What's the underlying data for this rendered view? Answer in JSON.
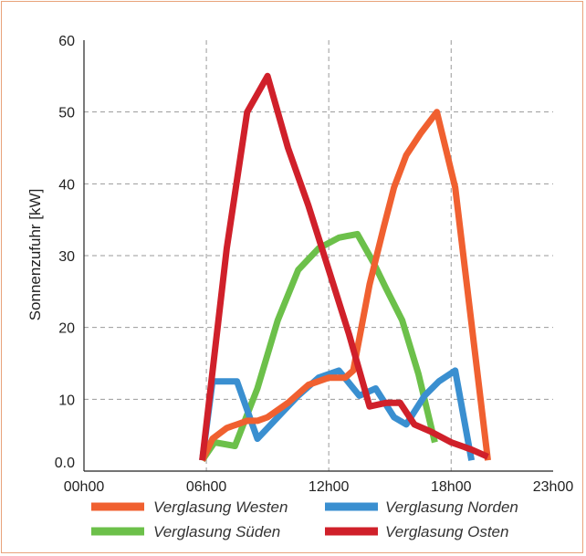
{
  "chart_data": {
    "type": "line",
    "title": "",
    "xlabel": "",
    "ylabel": "Sonnenzufuhr [kW]",
    "xlim": [
      0,
      23
    ],
    "ylim": [
      0,
      60
    ],
    "x_ticks": [
      {
        "value": 0,
        "label": "00h00"
      },
      {
        "value": 6,
        "label": "06h00"
      },
      {
        "value": 12,
        "label": "12h00"
      },
      {
        "value": 18,
        "label": "18h00"
      },
      {
        "value": 23,
        "label": "23h00"
      }
    ],
    "y_ticks": [
      {
        "value": 0,
        "label": "0.0"
      },
      {
        "value": 10,
        "label": "10"
      },
      {
        "value": 20,
        "label": "20"
      },
      {
        "value": 30,
        "label": "30"
      },
      {
        "value": 40,
        "label": "40"
      },
      {
        "value": 50,
        "label": "50"
      },
      {
        "value": 60,
        "label": "60"
      }
    ],
    "grid": {
      "horizontal": true,
      "vertical": true,
      "style": "dashed"
    },
    "legend_position": "bottom",
    "series": [
      {
        "name": "Verglasung Westen",
        "color": "#f06030",
        "x": [
          5.8,
          6.3,
          7.0,
          7.5,
          8.0,
          8.5,
          9.0,
          10.0,
          11.0,
          12.0,
          12.8,
          13.2,
          14.0,
          14.7,
          15.2,
          15.8,
          16.5,
          17.3,
          18.2,
          19.8
        ],
        "y": [
          1.5,
          4.5,
          6.0,
          6.5,
          7.0,
          7.0,
          7.5,
          9.5,
          12.0,
          13.0,
          13.0,
          14.0,
          26.0,
          34.0,
          39.5,
          44.0,
          47.0,
          50.0,
          39.5,
          1.5
        ]
      },
      {
        "name": "Verglasung Norden",
        "color": "#3a8fd0",
        "x": [
          5.8,
          6.3,
          7.0,
          7.5,
          8.5,
          9.5,
          10.5,
          11.5,
          12.5,
          13.5,
          14.3,
          15.2,
          15.8,
          16.7,
          17.4,
          18.2,
          19.0
        ],
        "y": [
          1.5,
          12.5,
          12.5,
          12.5,
          4.5,
          7.5,
          10.5,
          13.0,
          14.0,
          10.5,
          11.5,
          7.5,
          6.5,
          10.5,
          12.5,
          14.0,
          1.5
        ]
      },
      {
        "name": "Verglasung Süden",
        "color": "#6cc04a",
        "x": [
          5.8,
          6.4,
          7.4,
          8.5,
          9.5,
          10.5,
          11.5,
          12.5,
          13.4,
          14.2,
          14.8,
          15.6,
          16.4,
          17.2
        ],
        "y": [
          1.5,
          4.0,
          3.5,
          11.5,
          21.0,
          28.0,
          31.0,
          32.5,
          33.0,
          29.0,
          25.5,
          21.0,
          13.5,
          4.0
        ]
      },
      {
        "name": "Verglasung Osten",
        "color": "#d0202a",
        "x": [
          5.8,
          7.0,
          8.0,
          9.0,
          10.0,
          11.0,
          12.0,
          13.0,
          14.0,
          14.8,
          15.5,
          16.2,
          17.0,
          18.0,
          19.0,
          19.8
        ],
        "y": [
          1.5,
          31.0,
          50.0,
          55.0,
          45.0,
          37.0,
          28.0,
          19.0,
          9.0,
          9.5,
          9.5,
          6.5,
          5.5,
          4.0,
          3.0,
          2.0
        ]
      }
    ]
  }
}
